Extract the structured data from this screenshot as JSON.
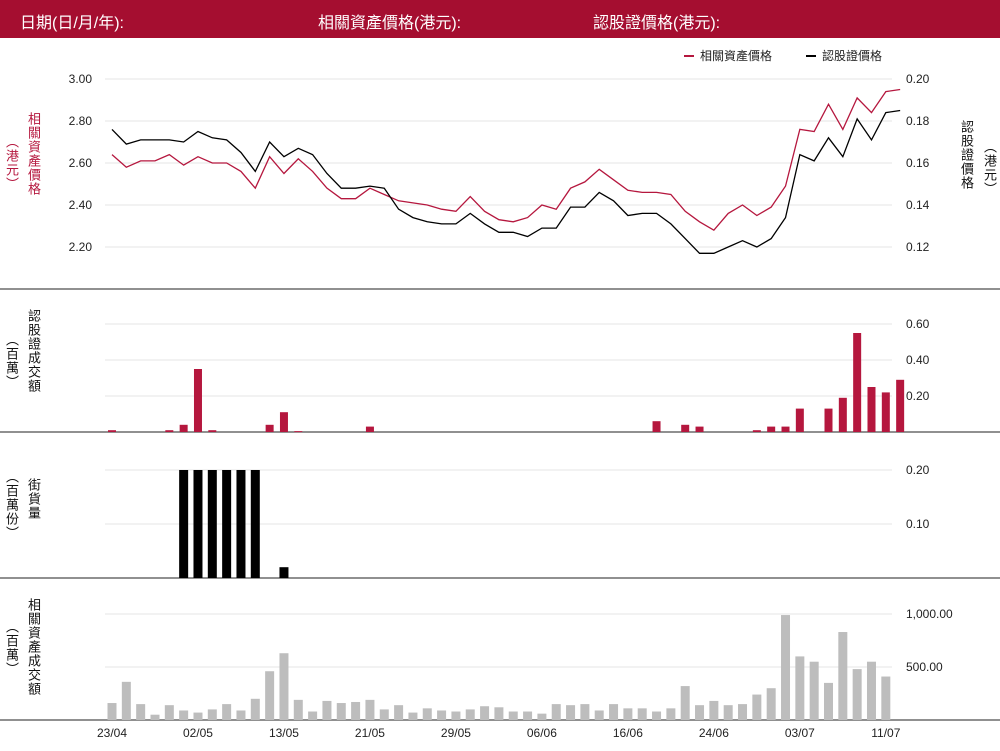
{
  "header": {
    "date_label": "日期(日/月/年):",
    "underlying_price_label": "相關資產價格(港元):",
    "warrant_price_label": "認股證價格(港元):"
  },
  "colors": {
    "header_bg": "#a50e30",
    "underlying": "#b5173e",
    "warrant": "#000000",
    "warrant_turnover": "#b5173e",
    "outstanding": "#000000",
    "underlying_turnover": "#bdbdbd"
  },
  "axis_labels": {
    "price_left": "相關資產價格",
    "price_left_unit": "（港元）",
    "price_right": "認股證價格",
    "price_right_unit": "（港元）",
    "warrant_turnover": "認股證成交額",
    "warrant_turnover_unit": "（百萬）",
    "outstanding": "街貨量",
    "outstanding_unit": "（百萬份）",
    "underlying_turnover": "相關資產成交額",
    "underlying_turnover_unit": "（百萬）"
  },
  "chart_data": [
    {
      "type": "line",
      "title": "",
      "legend": [
        "相關資產價格",
        "認股證價格"
      ],
      "legend_position": "top-right",
      "left_axis": {
        "ticks": [
          "3.00",
          "2.80",
          "2.60",
          "2.40",
          "2.20"
        ],
        "range": [
          2.2,
          3.0
        ]
      },
      "right_axis": {
        "ticks": [
          "0.20",
          "0.18",
          "0.16",
          "0.14",
          "0.12"
        ],
        "range": [
          0.12,
          0.2
        ]
      },
      "grid": true,
      "series": [
        {
          "name": "相關資產價格",
          "axis": "left",
          "values": [
            2.64,
            2.58,
            2.61,
            2.61,
            2.64,
            2.59,
            2.63,
            2.6,
            2.6,
            2.56,
            2.48,
            2.63,
            2.55,
            2.62,
            2.56,
            2.48,
            2.43,
            2.43,
            2.48,
            2.45,
            2.42,
            2.41,
            2.4,
            2.38,
            2.37,
            2.44,
            2.37,
            2.33,
            2.32,
            2.34,
            2.4,
            2.38,
            2.48,
            2.51,
            2.57,
            2.52,
            2.47,
            2.46,
            2.46,
            2.45,
            2.37,
            2.32,
            2.28,
            2.36,
            2.4,
            2.35,
            2.39,
            2.49,
            2.76,
            2.75,
            2.88,
            2.76,
            2.91,
            2.84,
            2.94,
            2.95
          ]
        },
        {
          "name": "認股證價格",
          "axis": "right",
          "values": [
            0.176,
            0.169,
            0.171,
            0.171,
            0.171,
            0.17,
            0.175,
            0.172,
            0.171,
            0.165,
            0.156,
            0.17,
            0.163,
            0.167,
            0.164,
            0.155,
            0.148,
            0.148,
            0.149,
            0.148,
            0.138,
            0.134,
            0.132,
            0.131,
            0.131,
            0.136,
            0.131,
            0.127,
            0.127,
            0.125,
            0.129,
            0.129,
            0.139,
            0.139,
            0.146,
            0.142,
            0.135,
            0.136,
            0.136,
            0.131,
            0.124,
            0.117,
            0.117,
            0.12,
            0.123,
            0.12,
            0.124,
            0.134,
            0.164,
            0.161,
            0.172,
            0.163,
            0.181,
            0.171,
            0.184,
            0.185
          ]
        }
      ]
    },
    {
      "type": "bar",
      "title": "",
      "ylabel": "認股證成交額",
      "right_axis": {
        "ticks": [
          "0.60",
          "0.40",
          "0.20"
        ],
        "range": [
          0,
          0.6
        ]
      },
      "series": [
        {
          "name": "",
          "values": [
            0.01,
            0,
            0,
            0,
            0.01,
            0.04,
            0.35,
            0.01,
            0,
            0,
            0,
            0.04,
            0.11,
            0.005,
            0,
            0,
            0,
            0,
            0.03,
            0,
            0,
            0,
            0,
            0,
            0,
            0,
            0,
            0,
            0,
            0,
            0,
            0,
            0,
            0,
            0,
            0,
            0,
            0,
            0.06,
            0,
            0.04,
            0.03,
            0,
            0,
            0,
            0.01,
            0.03,
            0.03,
            0.13,
            0,
            0.13,
            0.19,
            0.55,
            0.25,
            0.22,
            0.29
          ]
        }
      ]
    },
    {
      "type": "bar",
      "title": "",
      "ylabel": "街貨量",
      "right_axis": {
        "ticks": [
          "0.20",
          "0.10"
        ],
        "range": [
          0,
          0.2
        ]
      },
      "series": [
        {
          "name": "",
          "values": [
            0,
            0,
            0,
            0,
            0,
            0.2,
            0.2,
            0.2,
            0.2,
            0.2,
            0.2,
            0,
            0.02,
            0,
            0,
            0,
            0,
            0,
            0,
            0,
            0,
            0,
            0,
            0,
            0,
            0,
            0,
            0,
            0,
            0,
            0,
            0,
            0,
            0,
            0,
            0,
            0,
            0,
            0,
            0,
            0,
            0,
            0,
            0,
            0,
            0,
            0,
            0,
            0,
            0,
            0,
            0,
            0,
            0,
            0,
            0
          ]
        }
      ]
    },
    {
      "type": "bar",
      "title": "",
      "ylabel": "相關資產成交額",
      "right_axis": {
        "ticks": [
          "1,000.00",
          "500.00"
        ],
        "range": [
          0,
          1000
        ]
      },
      "x_ticks": [
        "23/04",
        "02/05",
        "13/05",
        "21/05",
        "29/05",
        "06/06",
        "16/06",
        "24/06",
        "03/07",
        "11/07"
      ],
      "series": [
        {
          "name": "",
          "values": [
            160,
            360,
            150,
            50,
            140,
            90,
            70,
            100,
            150,
            90,
            200,
            460,
            630,
            190,
            80,
            180,
            160,
            170,
            190,
            100,
            140,
            70,
            110,
            90,
            80,
            100,
            130,
            120,
            80,
            80,
            60,
            150,
            140,
            150,
            90,
            150,
            110,
            110,
            80,
            110,
            320,
            140,
            180,
            140,
            150,
            240,
            300,
            990,
            600,
            550,
            350,
            830,
            480,
            550,
            410,
            0
          ]
        }
      ]
    }
  ]
}
